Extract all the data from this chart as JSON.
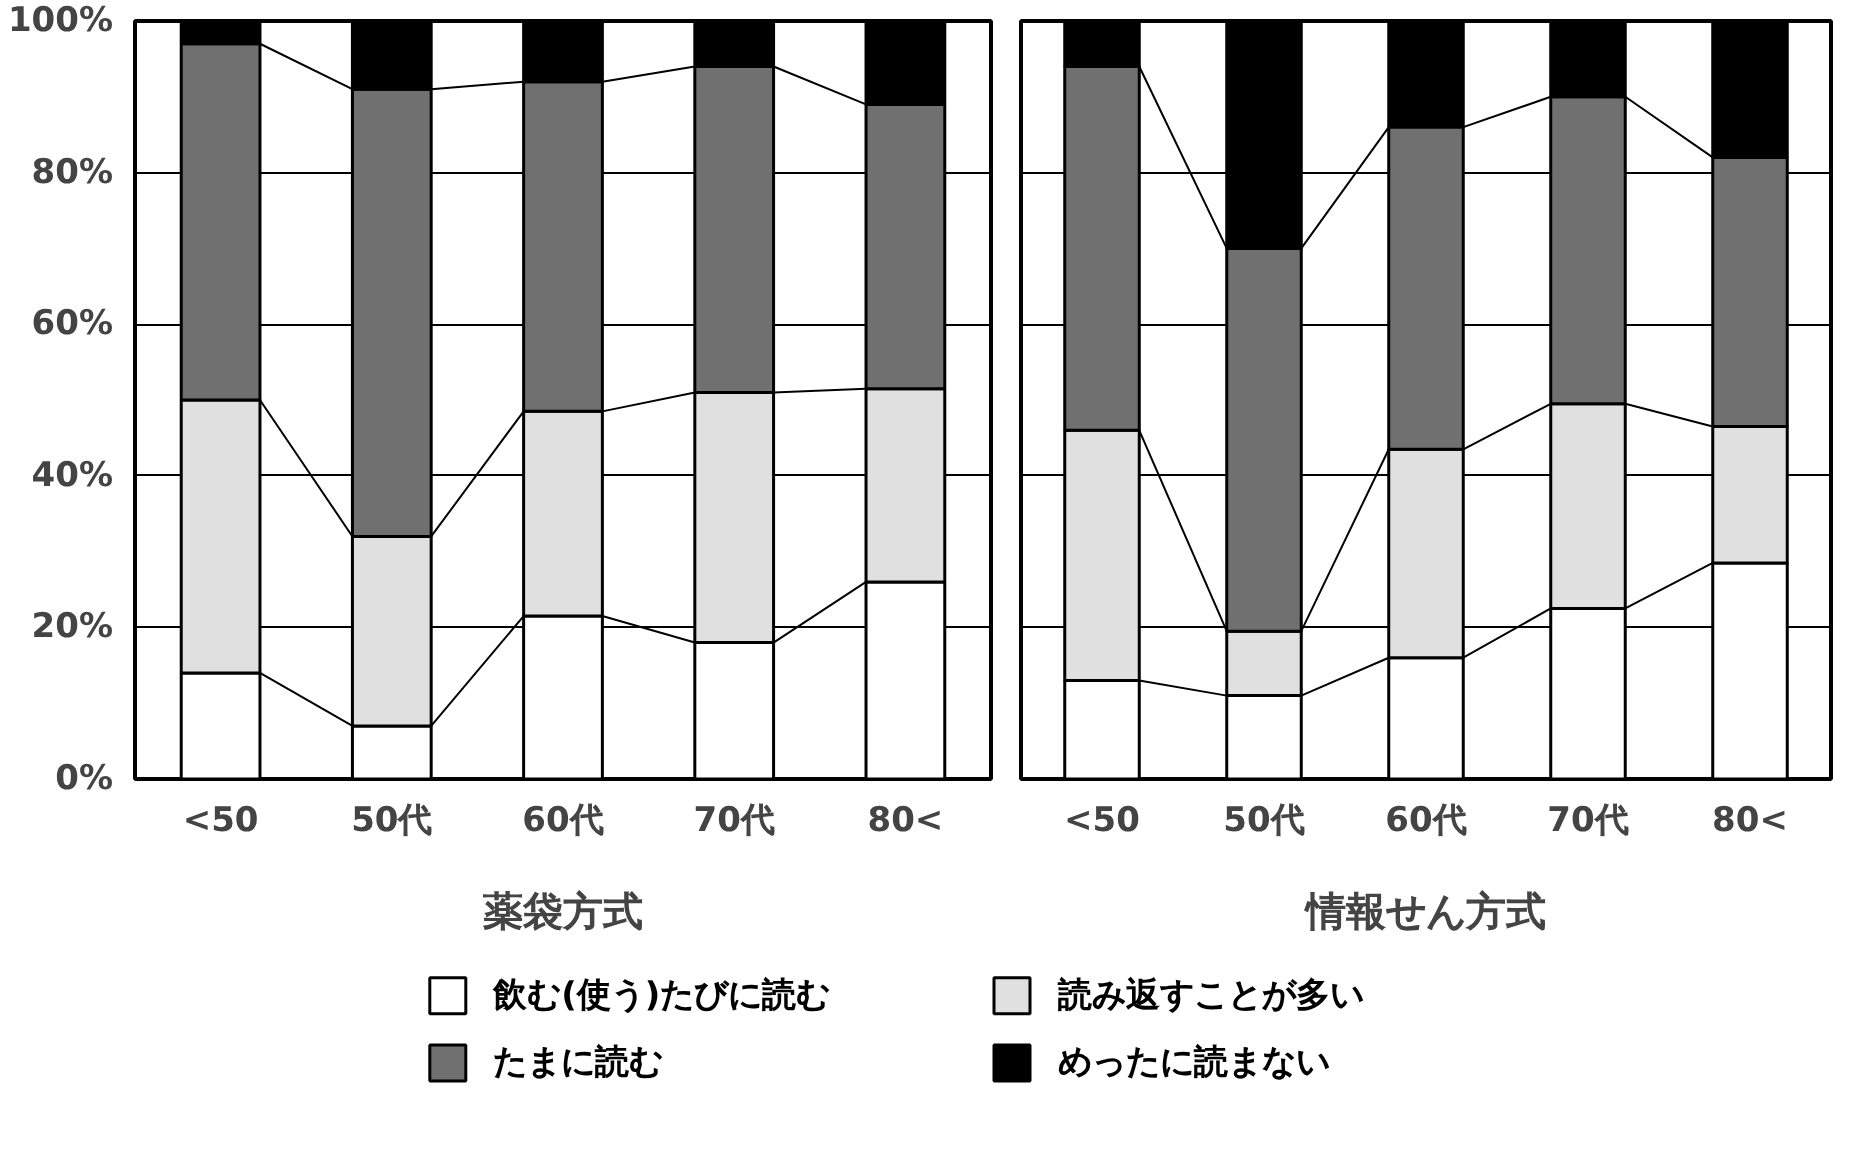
{
  "chart_data": [
    {
      "type": "bar",
      "stacked": true,
      "xlabel": "薬袋方式",
      "categories": [
        "<50",
        "50代",
        "60代",
        "70代",
        "80<"
      ],
      "ylim": [
        0,
        100
      ],
      "yticks": [
        {
          "value": 0,
          "label": "0%"
        },
        {
          "value": 20,
          "label": "20%"
        },
        {
          "value": 40,
          "label": "40%"
        },
        {
          "value": 60,
          "label": "60%"
        },
        {
          "value": 80,
          "label": "80%"
        },
        {
          "value": 100,
          "label": "100%"
        }
      ],
      "grid": "y",
      "legend": "bottom",
      "series": [
        {
          "name": "飲む(使う)たびに読む",
          "color": "#ffffff",
          "values": [
            14,
            7,
            21.5,
            18,
            26
          ]
        },
        {
          "name": "読み返すことが多い",
          "color": "#e0e0e0",
          "values": [
            36,
            25,
            27,
            33,
            25.5
          ]
        },
        {
          "name": "たまに読む",
          "color": "#707070",
          "values": [
            47,
            59,
            43.5,
            43,
            37.5
          ]
        },
        {
          "name": "めったに読まない",
          "color": "#000000",
          "values": [
            3,
            9,
            8,
            6,
            11
          ]
        }
      ]
    },
    {
      "type": "bar",
      "stacked": true,
      "xlabel": "情報せん方式",
      "categories": [
        "<50",
        "50代",
        "60代",
        "70代",
        "80<"
      ],
      "ylim": [
        0,
        100
      ],
      "yticks": [
        0,
        20,
        40,
        60,
        80,
        100
      ],
      "grid": "y",
      "tick_labels": "x",
      "series": [
        {
          "color": "#ffffff",
          "values": [
            13,
            11,
            16,
            22.5,
            28.5
          ]
        },
        {
          "color": "#e0e0e0",
          "values": [
            33,
            8.5,
            27.5,
            27,
            18
          ]
        },
        {
          "color": "#707070",
          "values": [
            48,
            50.5,
            42.5,
            40.5,
            35.5
          ]
        },
        {
          "color": "#000000",
          "values": [
            6,
            30,
            14,
            10,
            18
          ]
        }
      ]
    }
  ]
}
